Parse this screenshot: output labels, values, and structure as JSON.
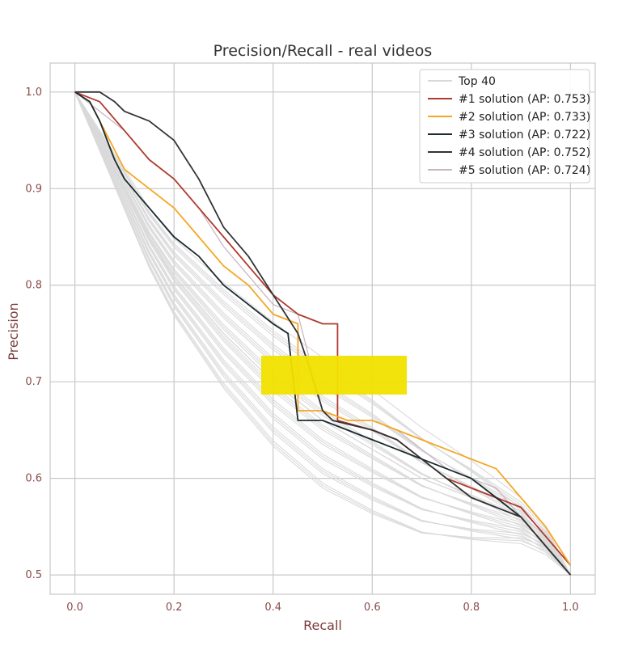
{
  "chart_data": {
    "type": "line",
    "title": "Precision/Recall - real videos",
    "xlabel": "Recall",
    "ylabel": "Precision",
    "xlim": [
      -0.05,
      1.05
    ],
    "ylim": [
      0.48,
      1.03
    ],
    "xticks": [
      "0.0",
      "0.2",
      "0.4",
      "0.6",
      "0.8",
      "1.0"
    ],
    "xtick_values": [
      0.0,
      0.2,
      0.4,
      0.6,
      0.8,
      1.0
    ],
    "yticks": [
      "0.5",
      "0.6",
      "0.7",
      "0.8",
      "0.9",
      "1.0"
    ],
    "ytick_values": [
      0.5,
      0.6,
      0.7,
      0.8,
      0.9,
      1.0
    ],
    "grid": true,
    "legend_position": "top-right",
    "series": [
      {
        "name": "Top 40",
        "color": "#d9d9d9",
        "x": [
          0.0,
          0.02,
          0.05,
          0.1,
          0.15,
          0.2,
          0.3,
          0.4,
          0.5,
          0.6,
          0.7,
          0.8,
          0.9,
          0.95,
          1.0
        ],
        "y": [
          1.0,
          0.98,
          0.95,
          0.9,
          0.85,
          0.81,
          0.75,
          0.7,
          0.66,
          0.63,
          0.6,
          0.58,
          0.56,
          0.54,
          0.5
        ]
      },
      {
        "name": "#1 solution (AP: 0.753)",
        "color": "#b03a2e",
        "x": [
          0.0,
          0.05,
          0.1,
          0.15,
          0.2,
          0.25,
          0.3,
          0.35,
          0.4,
          0.45,
          0.5,
          0.53,
          0.53,
          0.6,
          0.65,
          0.7,
          0.75,
          0.8,
          0.85,
          0.9,
          0.95,
          1.0
        ],
        "y": [
          1.0,
          0.99,
          0.96,
          0.93,
          0.91,
          0.88,
          0.85,
          0.82,
          0.79,
          0.77,
          0.76,
          0.76,
          0.66,
          0.65,
          0.64,
          0.62,
          0.6,
          0.59,
          0.58,
          0.57,
          0.54,
          0.51
        ]
      },
      {
        "name": "#2 solution (AP: 0.733)",
        "color": "#f5a623",
        "x": [
          0.0,
          0.03,
          0.05,
          0.08,
          0.1,
          0.15,
          0.2,
          0.25,
          0.3,
          0.35,
          0.4,
          0.45,
          0.45,
          0.5,
          0.55,
          0.6,
          0.65,
          0.7,
          0.75,
          0.8,
          0.85,
          0.9,
          0.95,
          1.0
        ],
        "y": [
          1.0,
          0.99,
          0.97,
          0.94,
          0.92,
          0.9,
          0.88,
          0.85,
          0.82,
          0.8,
          0.77,
          0.76,
          0.67,
          0.67,
          0.66,
          0.66,
          0.65,
          0.64,
          0.63,
          0.62,
          0.61,
          0.58,
          0.55,
          0.51
        ]
      },
      {
        "name": "#3 solution (AP: 0.722)",
        "color": "#1c2a2e",
        "x": [
          0.0,
          0.03,
          0.05,
          0.08,
          0.1,
          0.15,
          0.2,
          0.25,
          0.3,
          0.35,
          0.4,
          0.43,
          0.45,
          0.5,
          0.55,
          0.6,
          0.65,
          0.7,
          0.75,
          0.8,
          0.85,
          0.9,
          0.95,
          1.0
        ],
        "y": [
          1.0,
          0.99,
          0.97,
          0.93,
          0.91,
          0.88,
          0.85,
          0.83,
          0.8,
          0.78,
          0.76,
          0.75,
          0.66,
          0.66,
          0.65,
          0.64,
          0.63,
          0.62,
          0.61,
          0.6,
          0.58,
          0.56,
          0.53,
          0.5
        ]
      },
      {
        "name": "#4 solution (AP: 0.752)",
        "color": "#333333",
        "x": [
          0.0,
          0.03,
          0.05,
          0.08,
          0.1,
          0.15,
          0.2,
          0.25,
          0.3,
          0.35,
          0.4,
          0.45,
          0.47,
          0.5,
          0.52,
          0.6,
          0.65,
          0.7,
          0.75,
          0.8,
          0.85,
          0.9,
          0.95,
          1.0
        ],
        "y": [
          1.0,
          1.0,
          1.0,
          0.99,
          0.98,
          0.97,
          0.95,
          0.91,
          0.86,
          0.83,
          0.79,
          0.75,
          0.72,
          0.67,
          0.66,
          0.65,
          0.64,
          0.62,
          0.6,
          0.58,
          0.57,
          0.56,
          0.53,
          0.5
        ]
      },
      {
        "name": "#5 solution (AP: 0.724)",
        "color": "#c9b8c4",
        "x": [
          0.0,
          0.05,
          0.1,
          0.15,
          0.2,
          0.25,
          0.3,
          0.35,
          0.4,
          0.45,
          0.5,
          0.55,
          0.6,
          0.65,
          0.7,
          0.75,
          0.8,
          0.85,
          0.9,
          0.95,
          1.0
        ],
        "y": [
          1.0,
          0.98,
          0.96,
          0.93,
          0.91,
          0.88,
          0.84,
          0.81,
          0.78,
          0.77,
          0.67,
          0.66,
          0.66,
          0.65,
          0.63,
          0.61,
          0.6,
          0.59,
          0.56,
          0.54,
          0.51
        ]
      }
    ],
    "legend": [
      "Top 40",
      "#1 solution (AP: 0.753)",
      "#2 solution (AP: 0.733)",
      "#3 solution (AP: 0.722)",
      "#4 solution (AP: 0.752)",
      "#5 solution (AP: 0.724)"
    ]
  }
}
